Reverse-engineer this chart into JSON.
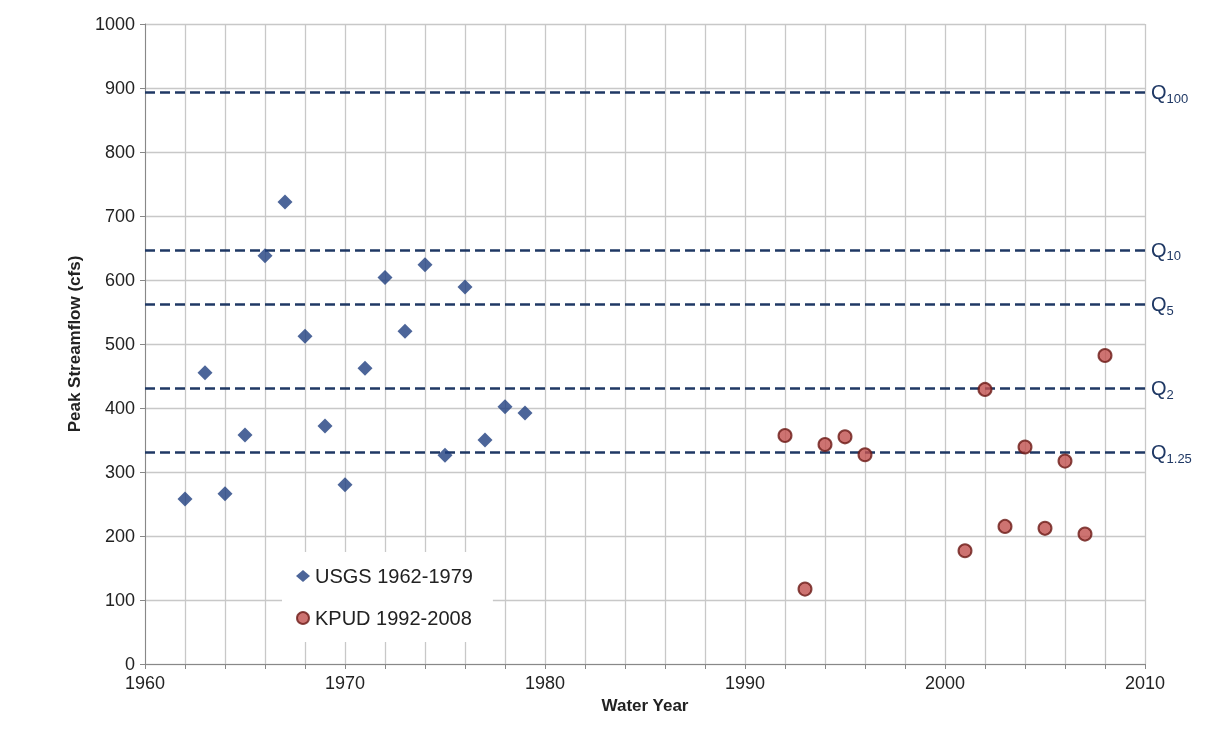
{
  "chart_data": {
    "type": "scatter",
    "xlabel": "Water Year",
    "ylabel": "Peak Streamflow (cfs)",
    "xlim": [
      1960,
      2010
    ],
    "xticks": [
      1960,
      {
        "value": 1962,
        "label": null
      },
      {
        "value": 1964,
        "label": null
      },
      {
        "value": 1966,
        "label": null
      },
      {
        "value": 1968,
        "label": null
      },
      1970,
      {
        "value": 1972,
        "label": null
      },
      {
        "value": 1974,
        "label": null
      },
      {
        "value": 1976,
        "label": null
      },
      {
        "value": 1978,
        "label": null
      },
      1980,
      {
        "value": 1982,
        "label": null
      },
      {
        "value": 1984,
        "label": null
      },
      {
        "value": 1986,
        "label": null
      },
      {
        "value": 1988,
        "label": null
      },
      1990,
      {
        "value": 1992,
        "label": null
      },
      {
        "value": 1994,
        "label": null
      },
      {
        "value": 1996,
        "label": null
      },
      {
        "value": 1998,
        "label": null
      },
      2000,
      {
        "value": 2002,
        "label": null
      },
      {
        "value": 2004,
        "label": null
      },
      {
        "value": 2006,
        "label": null
      },
      {
        "value": 2008,
        "label": null
      },
      2010
    ],
    "ylim": [
      0,
      1000
    ],
    "yticks": [
      0,
      100,
      200,
      300,
      400,
      500,
      600,
      700,
      800,
      900,
      1000
    ],
    "grid": true,
    "legend": "bottom left",
    "series": [
      {
        "name": "USGS 1962-1979",
        "color": "#1f3f7f",
        "marker": "diamond",
        "x": [
          1962,
          1963,
          1964,
          1965,
          1966,
          1967,
          1968,
          1969,
          1970,
          1971,
          1972,
          1973,
          1974,
          1975,
          1976,
          1977,
          1978,
          1979
        ],
        "values": [
          258,
          455,
          266,
          358,
          638,
          722,
          512,
          372,
          280,
          462,
          604,
          520,
          624,
          326,
          589,
          350,
          402,
          392
        ]
      },
      {
        "name": "KPUD 1992-2008",
        "color": "#c0504d",
        "marker": "circle",
        "x": [
          1992,
          1993,
          1994,
          1995,
          1996,
          2001,
          2002,
          2003,
          2004,
          2005,
          2006,
          2007,
          2008
        ],
        "values": [
          357,
          117,
          343,
          355,
          327,
          177,
          429,
          215,
          339,
          212,
          317,
          203,
          482
        ]
      }
    ],
    "ref_lines": [
      {
        "axis": "y",
        "value": 893,
        "label": "Q$_{100}$",
        "color": "#1f3864",
        "line_style": "dashed"
      },
      {
        "axis": "y",
        "value": 647,
        "label": "Q$_{10}$",
        "color": "#1f3864",
        "line_style": "dashed"
      },
      {
        "axis": "y",
        "value": 562,
        "label": "Q$_{5}$",
        "color": "#1f3864",
        "line_style": "dashed"
      },
      {
        "axis": "y",
        "value": 431,
        "label": "Q$_{2}$",
        "color": "#1f3864",
        "line_style": "dashed"
      },
      {
        "axis": "y",
        "value": 331,
        "label": "Q$_{1.25}$",
        "color": "#1f3864",
        "line_style": "dashed"
      }
    ]
  }
}
